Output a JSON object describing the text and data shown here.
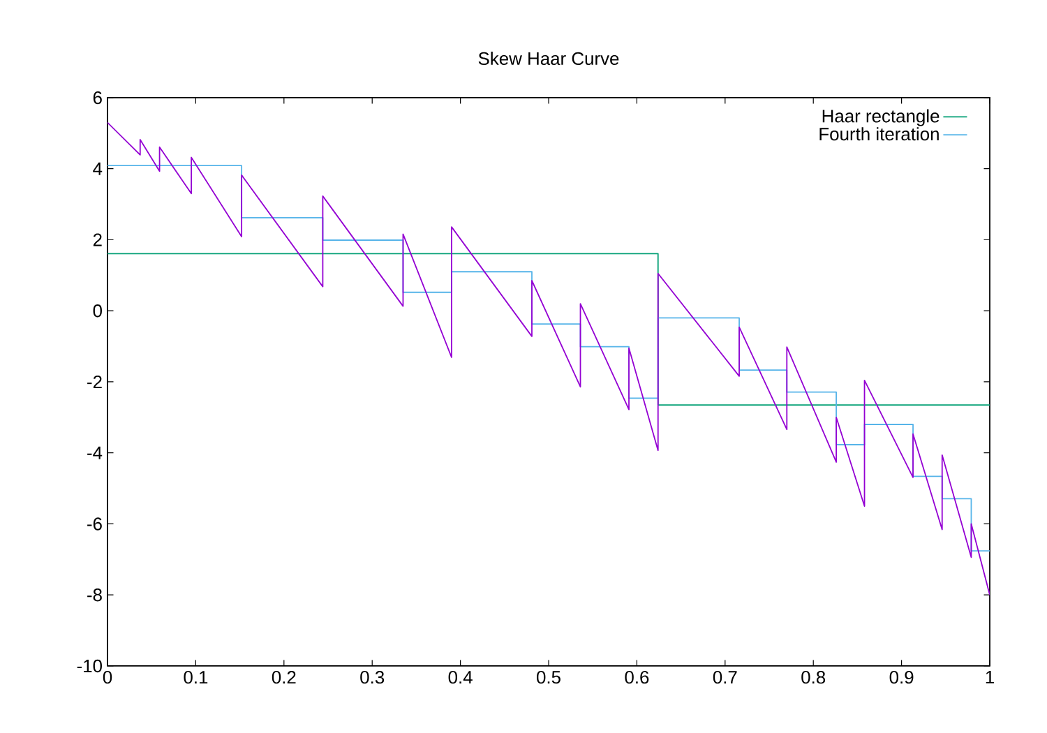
{
  "chart_data": {
    "type": "step",
    "title": "Skew Haar Curve",
    "xlim": [
      0,
      1
    ],
    "ylim": [
      -10,
      6
    ],
    "xticks": [
      0,
      0.1,
      0.2,
      0.3,
      0.4,
      0.5,
      0.6,
      0.7,
      0.8,
      0.9,
      1
    ],
    "yticks": [
      -10,
      -8,
      -6,
      -4,
      -2,
      0,
      2,
      4,
      6
    ],
    "grid": false,
    "legend": "top right",
    "series": [
      {
        "name": "Haar rectangle",
        "color": "#009e73",
        "x": [
          0,
          0.624,
          1
        ],
        "values": [
          1.61,
          -2.65,
          -2.65
        ]
      },
      {
        "name": "Fourth iteration",
        "color": "#56b4e9",
        "x": [
          0,
          0.152,
          0.244,
          0.335,
          0.39,
          0.481,
          0.536,
          0.591,
          0.624,
          0.716,
          0.77,
          0.826,
          0.858,
          0.913,
          0.946,
          0.979,
          1
        ],
        "values": [
          4.09,
          2.62,
          1.99,
          0.52,
          1.1,
          -0.37,
          -1.01,
          -2.46,
          -0.2,
          -1.67,
          -2.29,
          -3.77,
          -3.2,
          -4.66,
          -5.29,
          -6.76,
          -6.76
        ]
      },
      {
        "type": "line",
        "color": "#9400d3",
        "x": [
          0,
          0.037,
          0.037,
          0.059,
          0.059,
          0.095,
          0.095,
          0.152,
          0.152,
          0.244,
          0.244,
          0.335,
          0.335,
          0.39,
          0.39,
          0.481,
          0.481,
          0.536,
          0.536,
          0.591,
          0.591,
          0.624,
          0.624,
          0.716,
          0.716,
          0.77,
          0.77,
          0.826,
          0.826,
          0.858,
          0.858,
          0.913,
          0.913,
          0.946,
          0.946,
          0.979,
          0.979,
          1
        ],
        "values": [
          5.3,
          4.39,
          4.82,
          3.93,
          4.61,
          3.3,
          4.32,
          2.09,
          3.82,
          0.68,
          3.23,
          0.13,
          2.16,
          -1.31,
          2.36,
          -0.72,
          0.85,
          -2.14,
          0.2,
          -2.78,
          -1.05,
          -3.93,
          1.05,
          -1.84,
          -0.46,
          -3.34,
          -1.02,
          -4.26,
          -3.0,
          -5.5,
          -1.96,
          -4.69,
          -3.47,
          -6.16,
          -4.06,
          -6.94,
          -6.0,
          -8.0
        ]
      }
    ]
  }
}
